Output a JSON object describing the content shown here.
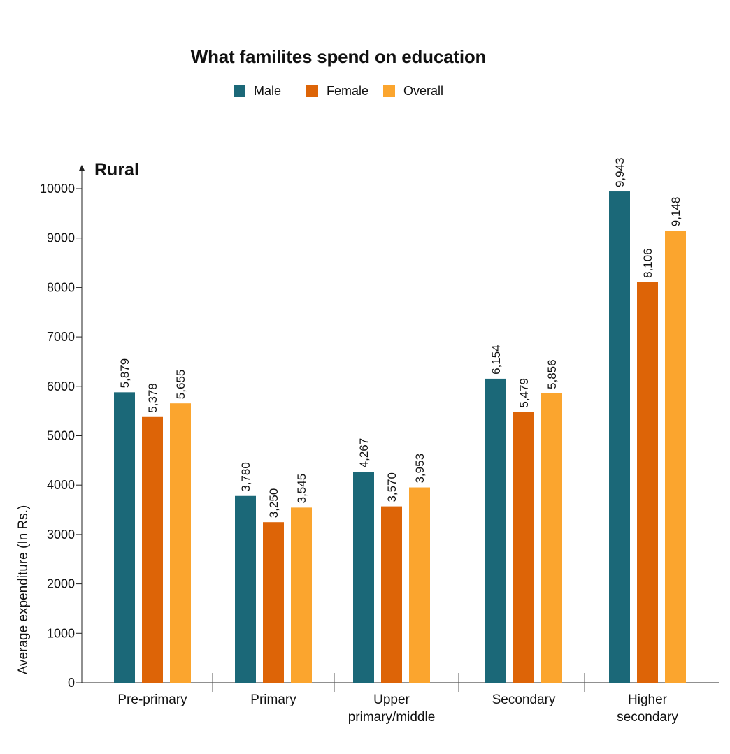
{
  "chart_data": {
    "type": "bar",
    "title": "What familites spend on education",
    "subtitle": "Rural",
    "ylabel": "Average expenditure (In Rs.)",
    "xlabel": "",
    "ylim": [
      0,
      10000
    ],
    "yticks": [
      0,
      1000,
      2000,
      3000,
      4000,
      5000,
      6000,
      7000,
      8000,
      9000,
      10000
    ],
    "yticks_labels": [
      "0",
      "1000",
      "2000",
      "3000",
      "4000",
      "5000",
      "6000",
      "7000",
      "8000",
      "9000",
      "10000"
    ],
    "categories": [
      "Pre-primary",
      "Primary",
      "Upper primary/middle",
      "Secondary",
      "Higher secondary"
    ],
    "category_lines": [
      [
        "Pre-primary"
      ],
      [
        "Primary"
      ],
      [
        "Upper",
        "primary/middle"
      ],
      [
        "Secondary"
      ],
      [
        "Higher",
        "secondary"
      ]
    ],
    "legend_position": "top-center",
    "grid": false,
    "series": [
      {
        "name": "Male",
        "color": "#1b6878",
        "values": [
          5879,
          3780,
          4267,
          6154,
          9943
        ],
        "labels": [
          "5,879",
          "3,780",
          "4,267",
          "6,154",
          "9,943"
        ]
      },
      {
        "name": "Female",
        "color": "#dd6407",
        "values": [
          5378,
          3250,
          3570,
          5479,
          8106
        ],
        "labels": [
          "5,378",
          "3,250",
          "3,570",
          "5,479",
          "8,106"
        ]
      },
      {
        "name": "Overall",
        "color": "#fba52e",
        "values": [
          5655,
          3545,
          3953,
          5856,
          9148
        ],
        "labels": [
          "5,655",
          "3,545",
          "3,953",
          "5,856",
          "9,148"
        ]
      }
    ]
  }
}
